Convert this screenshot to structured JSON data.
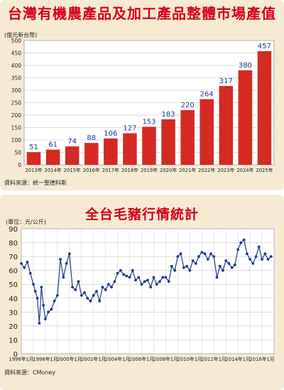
{
  "chart_data": [
    {
      "type": "bar",
      "title": "台灣有機農產品及加工產品整體市場產值",
      "unit_label": "(億元新台幣)",
      "source": "資料來源：統一聖德科斯",
      "categories": [
        "2013年",
        "2014年",
        "2015年",
        "2016年",
        "2017年",
        "2018年",
        "2019年",
        "2020年",
        "2021年",
        "2022年",
        "2023年",
        "2024年",
        "2025年"
      ],
      "values": [
        51,
        61,
        74,
        88,
        106,
        127,
        153,
        183,
        220,
        264,
        317,
        380,
        457
      ],
      "ylim": [
        0,
        500
      ],
      "yticks": [
        0,
        50,
        100,
        150,
        200,
        250,
        300,
        350,
        400,
        450,
        500
      ],
      "grid": true,
      "colors": {
        "bar": "#d42a22",
        "value_label": "#1f3a8a",
        "title": "#d6001c"
      }
    },
    {
      "type": "line",
      "title": "全台毛豬行情統計",
      "unit_label": "(單位：元/公斤)",
      "source": "資料來源：CMoney",
      "x_ticks": [
        "1996年1月",
        "1998年1月",
        "2000年1月",
        "2002年1月",
        "2004年1月",
        "2006年1月",
        "2008年1月",
        "2010年1月",
        "2012年1月",
        "2014年1月",
        "2016年1月"
      ],
      "x_range": [
        "1996-01",
        "2017-01"
      ],
      "ylim": [
        0,
        90
      ],
      "yticks": [
        0,
        10,
        20,
        30,
        40,
        50,
        60,
        70,
        80,
        90
      ],
      "grid": true,
      "colors": {
        "line": "#1f3a8a",
        "title": "#d6001c"
      },
      "series": [
        {
          "x": [
            "1996-01",
            "1996-04",
            "1996-07",
            "1996-10",
            "1997-01",
            "1997-03",
            "1997-05",
            "1997-07",
            "1997-09",
            "1997-11",
            "1998-01",
            "1998-04",
            "1998-07",
            "1998-10",
            "1999-01",
            "1999-04",
            "1999-07",
            "1999-10",
            "2000-01",
            "2000-04",
            "2000-07",
            "2000-10",
            "2001-01",
            "2001-04",
            "2001-07",
            "2001-10",
            "2002-01",
            "2002-04",
            "2002-07",
            "2002-10",
            "2003-01",
            "2003-04",
            "2003-07",
            "2003-10",
            "2004-01",
            "2004-04",
            "2004-07",
            "2004-10",
            "2005-01",
            "2005-04",
            "2005-07",
            "2005-10",
            "2006-01",
            "2006-04",
            "2006-07",
            "2006-10",
            "2007-01",
            "2007-04",
            "2007-07",
            "2007-10",
            "2008-01",
            "2008-04",
            "2008-07",
            "2008-10",
            "2009-01",
            "2009-04",
            "2009-07",
            "2009-10",
            "2010-01",
            "2010-04",
            "2010-07",
            "2010-10",
            "2011-01",
            "2011-04",
            "2011-07",
            "2011-10",
            "2012-01",
            "2012-04",
            "2012-07",
            "2012-10",
            "2013-01",
            "2013-04",
            "2013-07",
            "2013-10",
            "2014-01",
            "2014-04",
            "2014-07",
            "2014-10",
            "2015-01",
            "2015-04",
            "2015-07",
            "2015-10",
            "2016-01",
            "2016-04",
            "2016-07",
            "2016-10"
          ],
          "y": [
            65,
            62,
            66,
            58,
            50,
            45,
            40,
            22,
            48,
            35,
            25,
            30,
            32,
            38,
            42,
            68,
            55,
            65,
            72,
            48,
            46,
            52,
            42,
            44,
            40,
            38,
            42,
            45,
            38,
            48,
            46,
            50,
            48,
            52,
            58,
            60,
            57,
            56,
            55,
            60,
            53,
            55,
            50,
            52,
            53,
            48,
            55,
            50,
            52,
            55,
            55,
            52,
            63,
            60,
            70,
            72,
            62,
            63,
            60,
            67,
            65,
            70,
            73,
            72,
            68,
            72,
            70,
            55,
            63,
            60,
            67,
            65,
            62,
            64,
            75,
            80,
            82,
            72,
            68,
            65,
            70,
            77,
            68,
            72,
            68,
            70
          ]
        }
      ]
    }
  ]
}
